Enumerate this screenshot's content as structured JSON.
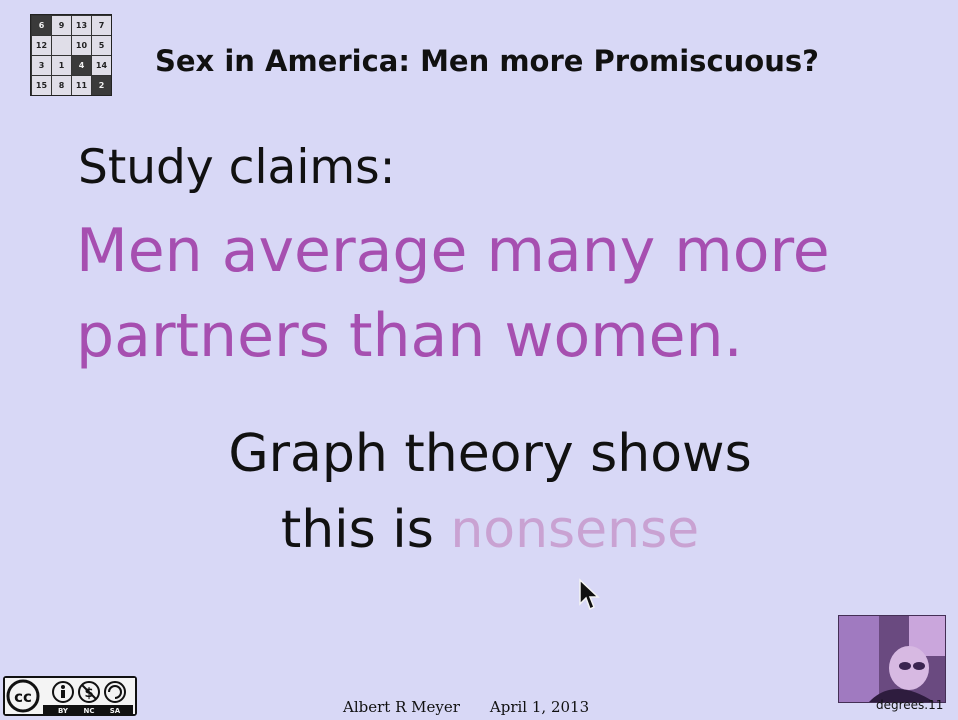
{
  "logo": {
    "cells": [
      {
        "text": "6",
        "dark": true
      },
      {
        "text": "9",
        "dark": false
      },
      {
        "text": "13",
        "dark": false
      },
      {
        "text": "7",
        "dark": false
      },
      {
        "text": "12",
        "dark": false
      },
      {
        "text": "",
        "dark": false
      },
      {
        "text": "10",
        "dark": false
      },
      {
        "text": "5",
        "dark": false
      },
      {
        "text": "3",
        "dark": false
      },
      {
        "text": "1",
        "dark": false
      },
      {
        "text": "4",
        "dark": true
      },
      {
        "text": "14",
        "dark": false
      },
      {
        "text": "15",
        "dark": false
      },
      {
        "text": "8",
        "dark": false
      },
      {
        "text": "11",
        "dark": false
      },
      {
        "text": "2",
        "dark": true
      }
    ]
  },
  "slide": {
    "title": "Sex in America: Men more Promiscuous?",
    "claim_lead": "Study claims:",
    "claim_line_1": "Men average many more",
    "claim_line_2": "partners than women.",
    "conclusion_line_1": "Graph theory shows",
    "conclusion_line_2_prefix": "this is ",
    "conclusion_line_2_emphasis": "nonsense"
  },
  "license": {
    "badge_labels": [
      "BY",
      "NC",
      "SA"
    ]
  },
  "footer": {
    "author": "Albert R Meyer",
    "date": "April 1, 2013"
  },
  "slide_id": "degrees.11",
  "colors": {
    "background": "#d8d8f6",
    "claim_accent": "#a64fb0",
    "emphasis_faded": "#c9a2d2"
  }
}
